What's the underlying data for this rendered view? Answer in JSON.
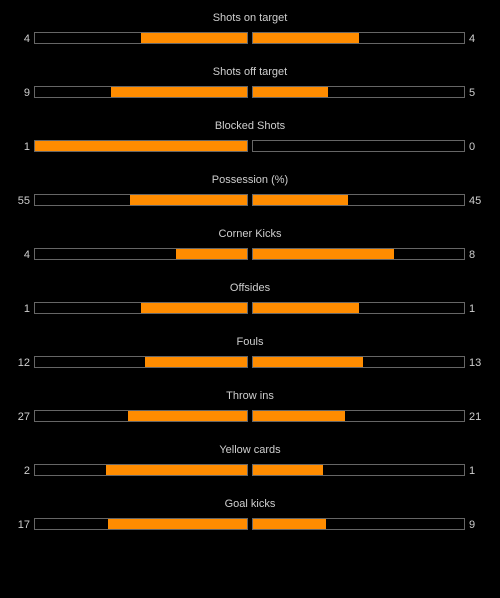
{
  "colors": {
    "background": "#000000",
    "text": "#cfcfcf",
    "bar_fill": "#ff8c00",
    "bar_border": "#666666"
  },
  "stats": [
    {
      "label": "Shots on target",
      "home": "4",
      "away": "4",
      "home_fraction": 0.5,
      "away_fraction": 0.5
    },
    {
      "label": "Shots off target",
      "home": "9",
      "away": "5",
      "home_fraction": 0.643,
      "away_fraction": 0.357
    },
    {
      "label": "Blocked Shots",
      "home": "1",
      "away": "0",
      "home_fraction": 1.0,
      "away_fraction": 0.0
    },
    {
      "label": "Possession (%)",
      "home": "55",
      "away": "45",
      "home_fraction": 0.55,
      "away_fraction": 0.45
    },
    {
      "label": "Corner Kicks",
      "home": "4",
      "away": "8",
      "home_fraction": 0.333,
      "away_fraction": 0.667
    },
    {
      "label": "Offsides",
      "home": "1",
      "away": "1",
      "home_fraction": 0.5,
      "away_fraction": 0.5
    },
    {
      "label": "Fouls",
      "home": "12",
      "away": "13",
      "home_fraction": 0.48,
      "away_fraction": 0.52
    },
    {
      "label": "Throw ins",
      "home": "27",
      "away": "21",
      "home_fraction": 0.5625,
      "away_fraction": 0.4375
    },
    {
      "label": "Yellow cards",
      "home": "2",
      "away": "1",
      "home_fraction": 0.667,
      "away_fraction": 0.333
    },
    {
      "label": "Goal kicks",
      "home": "17",
      "away": "9",
      "home_fraction": 0.654,
      "away_fraction": 0.346
    }
  ]
}
